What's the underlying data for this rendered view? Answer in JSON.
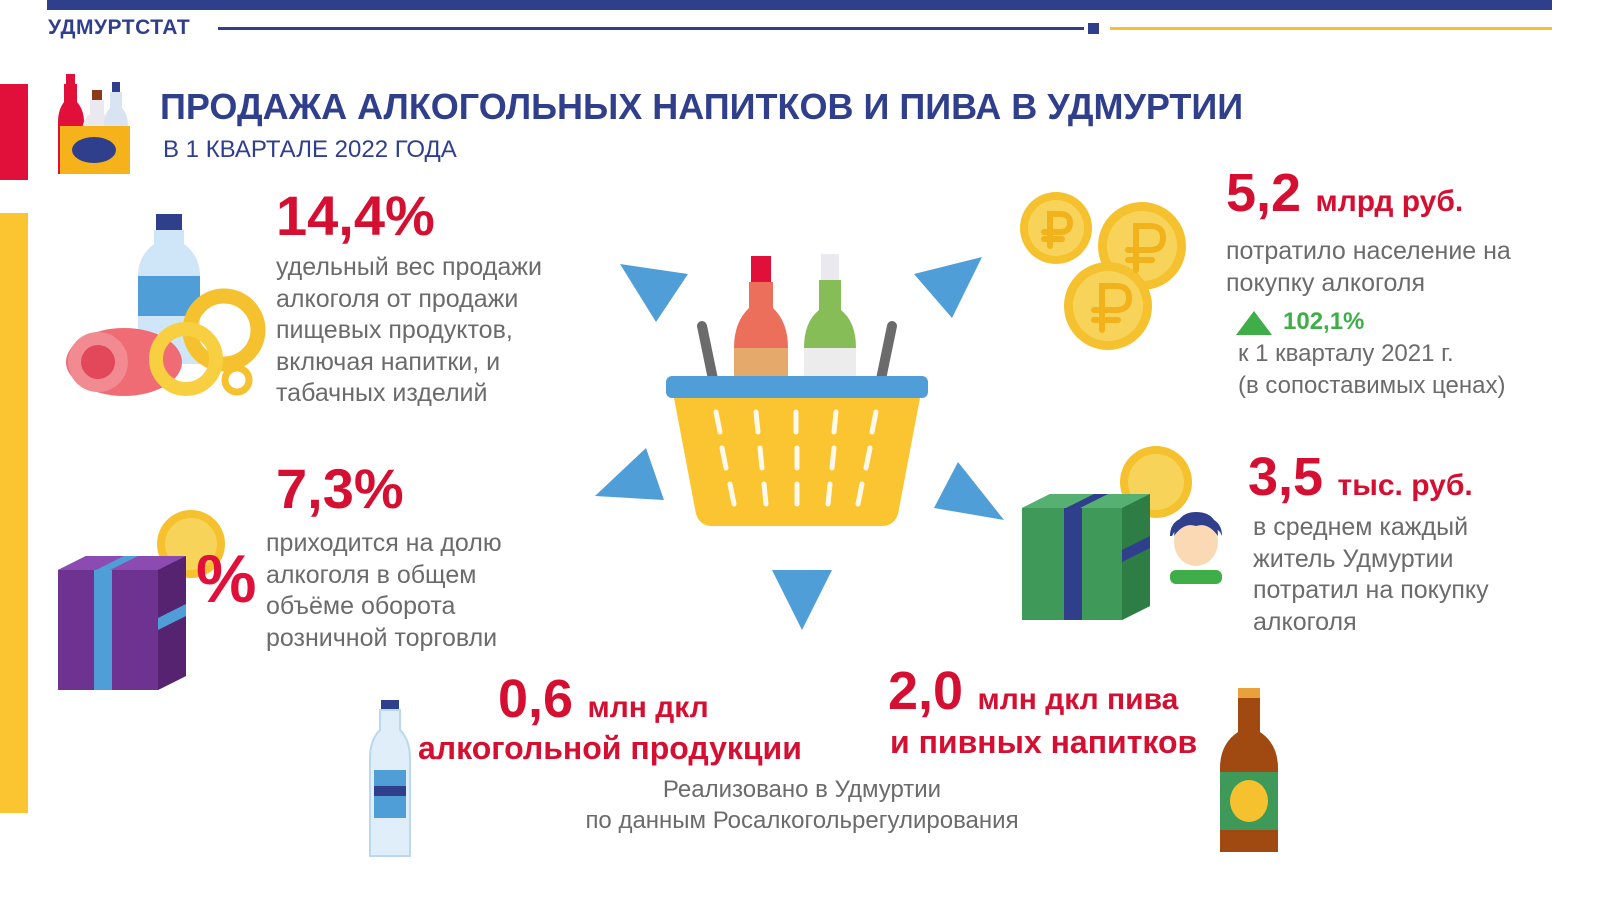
{
  "header": {
    "brand": "УДМУРТСТАТ"
  },
  "title": "ПРОДАЖА АЛКОГОЛЬНЫХ НАПИТКОВ И ПИВА В УДМУРТИИ",
  "subtitle": "В 1 КВАРТАЛЕ 2022 ГОДА",
  "stats": {
    "food_share": {
      "value": "14,4%",
      "lines": [
        "удельный  вес продажи",
        "алкоголя от продажи",
        "пищевых продуктов,",
        "включая напитки, и",
        "табачных изделий"
      ]
    },
    "retail_share": {
      "value": "7,3%",
      "lines": [
        "приходится на долю",
        "алкоголя в общем",
        "объёме оборота",
        "розничной торговли"
      ]
    },
    "spent_total": {
      "value": "5,2",
      "unit": "млрд руб.",
      "lines": [
        "потратило население на",
        "покупку алкоголя"
      ],
      "growth": "102,1%",
      "growth_lines": [
        "к 1 кварталу 2021 г.",
        "(в сопоставимых ценах)"
      ]
    },
    "per_capita": {
      "value": "3,5",
      "unit": "тыс. руб.",
      "lines": [
        "в среднем каждый",
        "житель Удмуртии",
        "потратил на покупку",
        "алкоголя"
      ]
    },
    "alcohol_volume": {
      "value": "0,6",
      "unit": "млн дкл",
      "line2": "алкогольной продукции"
    },
    "beer_volume": {
      "value": "2,0",
      "unit": "млн дкл пива",
      "line2": "и пивных напитков"
    }
  },
  "footnote": [
    "Реализовано в Удмуртии",
    "по данным Росалкогольрегулирования"
  ],
  "icons": {
    "percent_glyph": "%",
    "colors": {
      "navy": "#2f3f8c",
      "red": "#d40f32",
      "yellow": "#fbc531",
      "green": "#3fae49",
      "arrow_blue": "#4f9ed8"
    }
  }
}
